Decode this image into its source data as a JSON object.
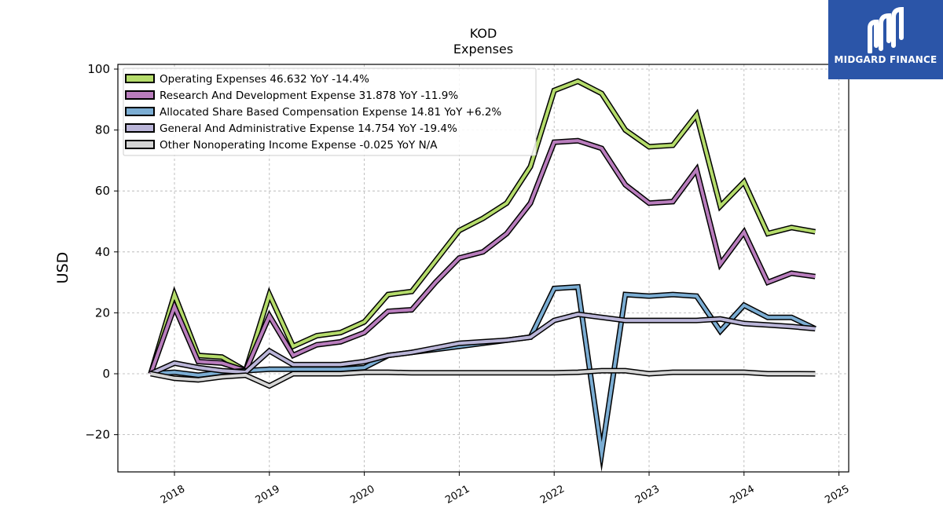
{
  "chart_data": {
    "type": "line",
    "title": "KOD",
    "subtitle": "Expenses",
    "xlabel": "",
    "ylabel": "USD",
    "ylim": [
      -32,
      102
    ],
    "xlim": [
      2017.4,
      2025.1
    ],
    "yticks": [
      -20,
      0,
      20,
      40,
      60,
      80,
      100
    ],
    "ytick_labels": [
      "−20",
      "0",
      "20",
      "40",
      "60",
      "80",
      "100"
    ],
    "xticks": [
      2018,
      2019,
      2020,
      2021,
      2022,
      2023,
      2024,
      2025
    ],
    "xtick_labels": [
      "2018",
      "2019",
      "2020",
      "2021",
      "2022",
      "2023",
      "2024",
      "2025"
    ],
    "grid": true,
    "legend_position": "top-left",
    "x": [
      2017.75,
      2018.0,
      2018.25,
      2018.5,
      2018.75,
      2019.0,
      2019.25,
      2019.5,
      2019.75,
      2020.0,
      2020.25,
      2020.5,
      2020.75,
      2021.0,
      2021.25,
      2021.5,
      2021.75,
      2022.0,
      2022.25,
      2022.5,
      2022.75,
      2023.0,
      2023.25,
      2023.5,
      2023.75,
      2024.0,
      2024.25,
      2024.5,
      2024.75
    ],
    "series": [
      {
        "name": "Operating Expenses",
        "legend": "Operating Expenses  46.632 YoY -14.4%",
        "color": "#b5dc6b",
        "values": [
          0,
          26,
          6,
          5.5,
          1,
          26,
          9,
          12.5,
          13.5,
          17,
          26,
          27,
          37,
          47,
          51,
          56,
          68,
          93,
          96,
          92,
          80,
          74.5,
          75,
          85,
          55,
          63,
          46,
          48,
          46.6
        ]
      },
      {
        "name": "Research And Development Expense",
        "legend": "Research And Development Expense  31.878 YoY -11.9%",
        "color": "#b97dbd",
        "values": [
          0,
          22,
          4,
          3.5,
          1,
          19,
          6,
          9.5,
          10.5,
          13.5,
          20.5,
          21,
          30,
          38,
          40,
          46,
          56,
          76,
          76.5,
          74,
          62,
          56,
          56.5,
          67,
          36,
          46.5,
          30,
          33,
          31.9
        ]
      },
      {
        "name": "Allocated Share Based Compensation Expense",
        "legend": "Allocated Share Based Compensation Expense  14.81 YoY +6.2%",
        "color": "#7badd3",
        "values": [
          0,
          0.5,
          -0.5,
          0.5,
          1,
          1.5,
          1.5,
          1.5,
          1.5,
          2,
          6,
          7,
          8,
          9,
          10,
          11,
          12,
          28,
          28.5,
          -26,
          26,
          25.5,
          26,
          25.5,
          14,
          22.5,
          18.5,
          18.5,
          14.8
        ]
      },
      {
        "name": "General And Administrative Expense",
        "legend": "General And Administrative Expense  14.754 YoY -19.4%",
        "color": "#bab5d8",
        "values": [
          0,
          3.5,
          2,
          1,
          0.5,
          7.5,
          3,
          3,
          3,
          4,
          6,
          7,
          8.5,
          10,
          10.5,
          11,
          12,
          17.5,
          19.5,
          18.5,
          17.5,
          17.5,
          17.5,
          17.5,
          18,
          16.5,
          16,
          15.5,
          14.8
        ]
      },
      {
        "name": "Other Nonoperating Income Expense",
        "legend": "Other Nonoperating Income Expense  -0.025 YoY N/A",
        "color": "#d5d5d5",
        "values": [
          0,
          -1.5,
          -2,
          -1,
          -0.5,
          -4,
          0,
          0,
          0,
          0.5,
          0.5,
          0.3,
          0.3,
          0.3,
          0.3,
          0.3,
          0.3,
          0.3,
          0.5,
          1,
          1,
          0,
          0.5,
          0.5,
          0.5,
          0.5,
          0,
          0,
          -0.025
        ]
      }
    ]
  },
  "logo": {
    "text": "MIDGARD FINANCE"
  }
}
